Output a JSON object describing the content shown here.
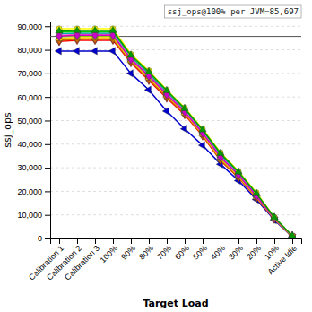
{
  "chart_data": {
    "type": "line",
    "x_label": "Target Load",
    "y_label": "ssj_ops",
    "categories": [
      "Calibration 1",
      "Calibration 2",
      "Calibration 3",
      "100%",
      "90%",
      "80%",
      "70%",
      "60%",
      "50%",
      "40%",
      "30%",
      "20%",
      "10%",
      "Active Idle"
    ],
    "series": [
      {
        "color": "#0000cc",
        "marker": "triangle-left",
        "values": [
          79500,
          79500,
          79500,
          79500,
          70000,
          63000,
          54000,
          46500,
          39500,
          31500,
          24500,
          16500,
          7800,
          700
        ]
      },
      {
        "color": "#ff0000",
        "marker": "triangle-down",
        "values": [
          83500,
          84000,
          84000,
          84000,
          74500,
          67000,
          59500,
          52500,
          43500,
          33000,
          25800,
          17200,
          8200,
          900
        ]
      },
      {
        "color": "#ff6600",
        "marker": "square",
        "values": [
          84200,
          84700,
          84700,
          84700,
          75200,
          67700,
          60200,
          53000,
          44000,
          33500,
          26200,
          17500,
          8350,
          950
        ]
      },
      {
        "color": "#cc6600",
        "marker": "diamond",
        "values": [
          84000,
          84500,
          84500,
          84500,
          75000,
          67500,
          60000,
          52800,
          43800,
          33300,
          26000,
          17300,
          8300,
          920
        ]
      },
      {
        "color": "#ffcc00",
        "marker": "triangle-up",
        "values": [
          84800,
          85200,
          85200,
          85200,
          75500,
          68200,
          60700,
          53300,
          44300,
          33800,
          26400,
          17700,
          8400,
          970
        ]
      },
      {
        "color": "#99cc00",
        "marker": "circle",
        "values": [
          85500,
          85800,
          85800,
          85800,
          76000,
          68700,
          61200,
          53800,
          44800,
          34300,
          26800,
          18000,
          8550,
          1000
        ]
      },
      {
        "color": "#00cc00",
        "marker": "circle",
        "values": [
          87500,
          87500,
          87500,
          87500,
          77000,
          70000,
          62000,
          54500,
          45500,
          35500,
          27800,
          18800,
          8900,
          1100
        ]
      },
      {
        "color": "#00aaaa",
        "marker": "triangle-up",
        "values": [
          86800,
          87000,
          87000,
          87000,
          76700,
          69700,
          61800,
          54300,
          45300,
          35200,
          27600,
          18600,
          8820,
          1060
        ]
      },
      {
        "color": "#ff66cc",
        "marker": "square",
        "values": [
          86200,
          86500,
          86500,
          86500,
          76300,
          69200,
          61400,
          54000,
          45000,
          34700,
          27200,
          18200,
          8650,
          1020
        ]
      },
      {
        "color": "#cc00cc",
        "marker": "diamond",
        "values": [
          85800,
          86200,
          86200,
          86200,
          75900,
          68900,
          61100,
          53700,
          44700,
          34500,
          27000,
          18000,
          8600,
          1010
        ]
      },
      {
        "color": "#ffff00",
        "marker": "circle",
        "values": [
          89000,
          89000,
          89000,
          89000,
          78200,
          71200,
          63000,
          55500,
          46500,
          36500,
          28500,
          19500,
          9000,
          1150
        ]
      },
      {
        "color": "#009900",
        "marker": "triangle-up",
        "values": [
          88000,
          88200,
          88200,
          88200,
          77700,
          70700,
          62700,
          55100,
          46100,
          36100,
          28200,
          19100,
          8950,
          1120
        ]
      }
    ],
    "annotations": [
      {
        "text": "ssj_ops@100% per JVM=85,697",
        "y": 85697
      }
    ],
    "ylim": [
      0,
      92000
    ],
    "yticks": [
      0,
      {
        "value": 10000,
        "label": "10,000"
      },
      {
        "value": 20000,
        "label": "20,000"
      },
      {
        "value": 30000,
        "label": "30,000"
      },
      {
        "value": 40000,
        "label": "40,000"
      },
      {
        "value": 50000,
        "label": "50,000"
      },
      {
        "value": 60000,
        "label": "60,000"
      },
      {
        "value": 70000,
        "label": "70,000"
      },
      {
        "value": 80000,
        "label": "80,000"
      },
      {
        "value": 90000,
        "label": "90,000"
      }
    ],
    "grid": true
  }
}
